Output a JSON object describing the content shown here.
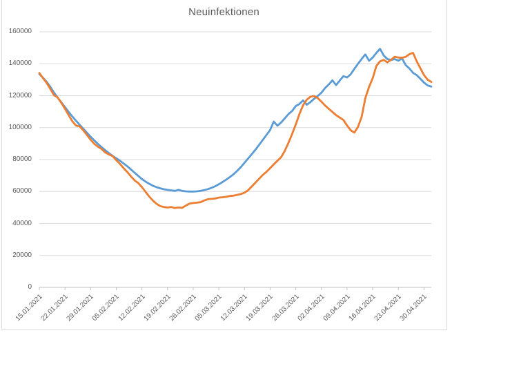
{
  "chart": {
    "background": "#ffffff",
    "frame_border_color": "#d9d9d9",
    "gridline_color": "#d9d9d9",
    "axis_line_color": "#bfbfbf",
    "text_color": "#595959"
  },
  "chart_data": {
    "type": "line",
    "title": "Neuinfektionen",
    "xlabel": "",
    "ylabel": "",
    "ylim": [
      0,
      160000
    ],
    "grid": true,
    "legend": "none",
    "y_ticks": [
      160000,
      140000,
      120000,
      100000,
      80000,
      60000,
      40000,
      20000,
      0
    ],
    "y_tick_labels": [
      "160000",
      "140000",
      "120000",
      "100000",
      "80000",
      "60000",
      "40000",
      "20000",
      "0"
    ],
    "x_tick_labels": [
      "15.01.2021",
      "22.01.2021",
      "29.01.2021",
      "05.02.2021",
      "12.02.2021",
      "19.02.2021",
      "26.02.2021",
      "05.03.2021",
      "12.03.2021",
      "19.03.2021",
      "26.03.2021",
      "02.04.2021",
      "09.04.2021",
      "16.04.2021",
      "23.04.2021",
      "30.04.2021"
    ],
    "categories": [
      "15.01.2021",
      "16.01.2021",
      "17.01.2021",
      "18.01.2021",
      "19.01.2021",
      "20.01.2021",
      "21.01.2021",
      "22.01.2021",
      "23.01.2021",
      "24.01.2021",
      "25.01.2021",
      "26.01.2021",
      "27.01.2021",
      "28.01.2021",
      "29.01.2021",
      "30.01.2021",
      "31.01.2021",
      "01.02.2021",
      "02.02.2021",
      "03.02.2021",
      "04.02.2021",
      "05.02.2021",
      "06.02.2021",
      "07.02.2021",
      "08.02.2021",
      "09.02.2021",
      "10.02.2021",
      "11.02.2021",
      "12.02.2021",
      "13.02.2021",
      "14.02.2021",
      "15.02.2021",
      "16.02.2021",
      "17.02.2021",
      "18.02.2021",
      "19.02.2021",
      "20.02.2021",
      "21.02.2021",
      "22.02.2021",
      "23.02.2021",
      "24.02.2021",
      "25.02.2021",
      "26.02.2021",
      "27.02.2021",
      "28.02.2021",
      "01.03.2021",
      "02.03.2021",
      "03.03.2021",
      "04.03.2021",
      "05.03.2021",
      "06.03.2021",
      "07.03.2021",
      "08.03.2021",
      "09.03.2021",
      "10.03.2021",
      "11.03.2021",
      "12.03.2021",
      "13.03.2021",
      "14.03.2021",
      "15.03.2021",
      "16.03.2021",
      "17.03.2021",
      "18.03.2021",
      "19.03.2021",
      "20.03.2021",
      "21.03.2021",
      "22.03.2021",
      "23.03.2021",
      "24.03.2021",
      "25.03.2021",
      "26.03.2021",
      "27.03.2021",
      "28.03.2021",
      "29.03.2021",
      "30.03.2021",
      "31.03.2021",
      "01.04.2021",
      "02.04.2021",
      "03.04.2021",
      "04.04.2021",
      "05.04.2021",
      "06.04.2021",
      "07.04.2021",
      "08.04.2021",
      "09.04.2021",
      "10.04.2021",
      "11.04.2021",
      "12.04.2021",
      "13.04.2021",
      "14.04.2021",
      "15.04.2021",
      "16.04.2021",
      "17.04.2021",
      "18.04.2021",
      "19.04.2021",
      "20.04.2021",
      "21.04.2021",
      "22.04.2021",
      "23.04.2021",
      "24.04.2021",
      "25.04.2021",
      "26.04.2021",
      "27.04.2021",
      "28.04.2021",
      "29.04.2021",
      "30.04.2021",
      "01.05.2021",
      "02.05.2021"
    ],
    "series": [
      {
        "id": "blue",
        "color": "#5B9BD5",
        "values": [
          133600,
          131200,
          128700,
          125500,
          122000,
          118800,
          115800,
          112800,
          109800,
          107000,
          104300,
          101800,
          99300,
          96800,
          94300,
          92000,
          89800,
          87800,
          85800,
          84000,
          82300,
          80800,
          79300,
          77600,
          75800,
          73800,
          71800,
          69800,
          67800,
          66200,
          64800,
          63600,
          62700,
          62000,
          61400,
          61000,
          60700,
          60400,
          61000,
          60400,
          60100,
          60000,
          60000,
          60100,
          60400,
          60900,
          61500,
          62300,
          63300,
          64500,
          65900,
          67400,
          69000,
          70800,
          72900,
          75300,
          78000,
          80700,
          83400,
          86200,
          89200,
          92300,
          95400,
          98500,
          103800,
          101200,
          103200,
          105800,
          108500,
          110400,
          113500,
          114800,
          117000,
          114300,
          116000,
          118000,
          119800,
          121800,
          124800,
          127000,
          129600,
          126600,
          129500,
          132200,
          131400,
          133400,
          136800,
          140000,
          143000,
          145800,
          141900,
          143900,
          146800,
          149300,
          145200,
          142900,
          142300,
          142900,
          141900,
          143400,
          139200,
          137100,
          134300,
          132900,
          130600,
          128200,
          126400,
          125700
        ]
      },
      {
        "id": "orange",
        "color": "#ED7D31",
        "values": [
          134200,
          131000,
          128000,
          124300,
          120300,
          118900,
          115500,
          111800,
          107800,
          104000,
          101300,
          100800,
          98300,
          95400,
          92400,
          89900,
          88100,
          86600,
          84400,
          83200,
          82100,
          79600,
          77300,
          74700,
          72200,
          69500,
          67000,
          65300,
          62800,
          59800,
          56800,
          54300,
          52300,
          50900,
          50300,
          50000,
          50300,
          49700,
          50000,
          49800,
          51200,
          52400,
          52800,
          53000,
          53300,
          54400,
          55200,
          55400,
          55600,
          56200,
          56400,
          56700,
          57200,
          57400,
          57900,
          58400,
          59300,
          60800,
          63200,
          65600,
          68000,
          70400,
          72300,
          74600,
          77000,
          79200,
          81500,
          85500,
          90500,
          96000,
          102000,
          108500,
          114000,
          117500,
          119300,
          119800,
          118500,
          116300,
          113800,
          111800,
          109800,
          107800,
          106300,
          104800,
          101300,
          98300,
          96900,
          100500,
          106800,
          118500,
          125500,
          131000,
          138600,
          141500,
          142400,
          140900,
          142400,
          144400,
          143900,
          143700,
          144300,
          145900,
          146800,
          141600,
          137200,
          132900,
          130000,
          128600
        ]
      }
    ]
  }
}
